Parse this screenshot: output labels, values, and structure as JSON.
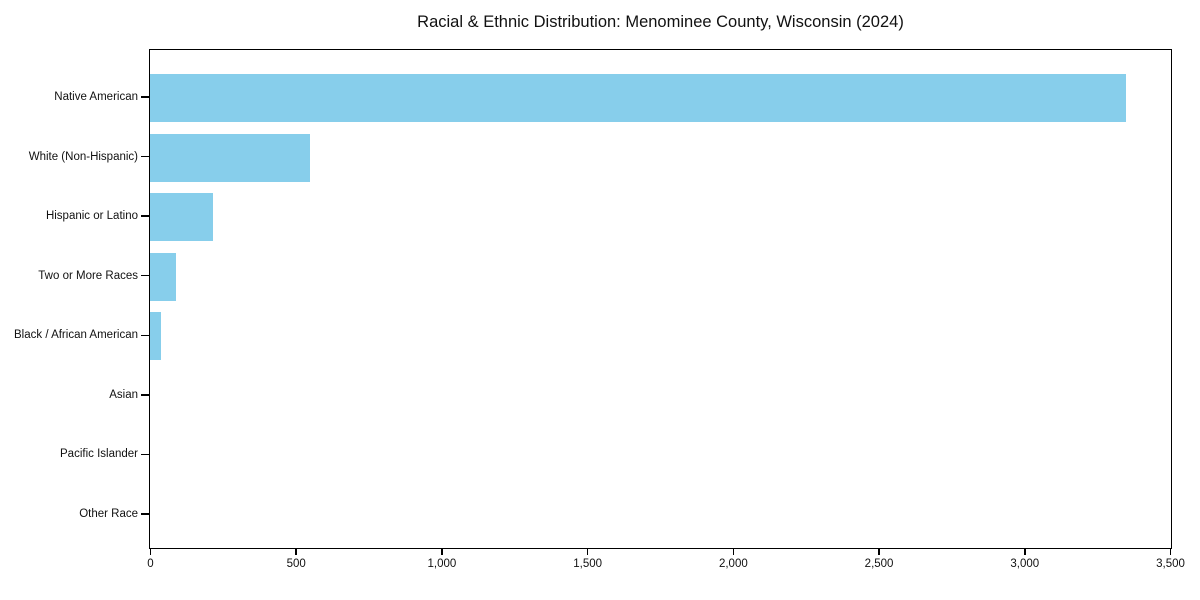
{
  "colors": {
    "bar": "#87CEEB",
    "axis": "#000000",
    "background": "#FFFFFF",
    "text": "#111111"
  },
  "chart_data": {
    "type": "bar",
    "orientation": "horizontal",
    "title": "Racial & Ethnic Distribution: Menominee County, Wisconsin (2024)",
    "xlabel": "",
    "ylabel": "",
    "categories": [
      "Native American",
      "White (Non-Hispanic)",
      "Hispanic or Latino",
      "Two or More Races",
      "Black / African American",
      "Asian",
      "Pacific Islander",
      "Other Race"
    ],
    "values": [
      3350,
      550,
      215,
      90,
      38,
      0,
      0,
      0
    ],
    "xlim": [
      0,
      3500
    ],
    "xticks": [
      0,
      500,
      1000,
      1500,
      2000,
      2500,
      3000,
      3500
    ],
    "xtick_labels": [
      "0",
      "500",
      "1,000",
      "1,500",
      "2,000",
      "2,500",
      "3,000",
      "3,500"
    ],
    "grid": false,
    "legend": null,
    "bar_color": "#87CEEB"
  }
}
